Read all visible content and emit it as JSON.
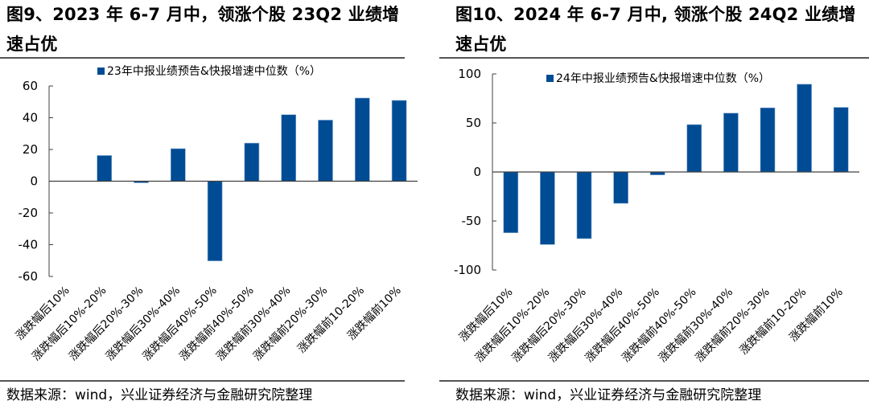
{
  "panels": [
    {
      "title_line1": "图9、2023 年 6-7 月中，领涨个股 23Q2 业绩增",
      "title_line2": "速占优",
      "source": "数据来源：wind，兴业证券经济与金融研究院整理"
    },
    {
      "title_line1": "图10、2024 年 6-7 月中, 领涨个股 24Q2 业绩增",
      "title_line2": "速占优",
      "source": "数据来源：wind，兴业证券经济与金融研究院整理"
    }
  ],
  "colors": {
    "bar": "#004c94",
    "axis": "#404040",
    "rule": "#555555"
  },
  "chart_data": [
    {
      "type": "bar",
      "title": "图9、2023 年 6-7 月中，领涨个股 23Q2 业绩增速占优",
      "categories": [
        "涨跌幅后10%",
        "涨跌幅后10%-20%",
        "涨跌幅后20%-30%",
        "涨跌幅后30%-40%",
        "涨跌幅后40%-50%",
        "涨跌幅前40%-50%",
        "涨跌幅前30%-40%",
        "涨跌幅前20%-30%",
        "涨跌幅前10-20%",
        "涨跌幅前10%"
      ],
      "series": [
        {
          "name": "23年中报业绩预告&快报增速中位数（%）",
          "values": [
            0,
            16.2,
            -1.0,
            20.5,
            -50.2,
            24.0,
            41.9,
            38.5,
            52.4,
            50.9
          ]
        }
      ],
      "xlabel": "",
      "ylabel": "",
      "ylim": [
        -60,
        60
      ],
      "yticks": [
        -60,
        -40,
        -20,
        0,
        20,
        40,
        60
      ],
      "grid": false,
      "legend": "top-center"
    },
    {
      "type": "bar",
      "title": "图10、2024 年 6-7 月中, 领涨个股 24Q2 业绩增速占优",
      "categories": [
        "涨跌幅后10%",
        "涨跌幅后10%-20%",
        "涨跌幅后20%-30%",
        "涨跌幅后30%-40%",
        "涨跌幅后40%-50%",
        "涨跌幅前40%-50%",
        "涨跌幅前30%-40%",
        "涨跌幅前20%-30%",
        "涨跌幅前10-20%",
        "涨跌幅前10%"
      ],
      "series": [
        {
          "name": "24年中报业绩预告&快报增速中位数（%）",
          "values": [
            -62,
            -74,
            -68,
            -32,
            -3,
            48.3,
            60.0,
            65.4,
            89.5,
            65.9
          ]
        }
      ],
      "xlabel": "",
      "ylabel": "",
      "ylim": [
        -100,
        100
      ],
      "yticks": [
        -100,
        -50,
        0,
        50,
        100
      ],
      "grid": false,
      "legend": "top-center"
    }
  ]
}
